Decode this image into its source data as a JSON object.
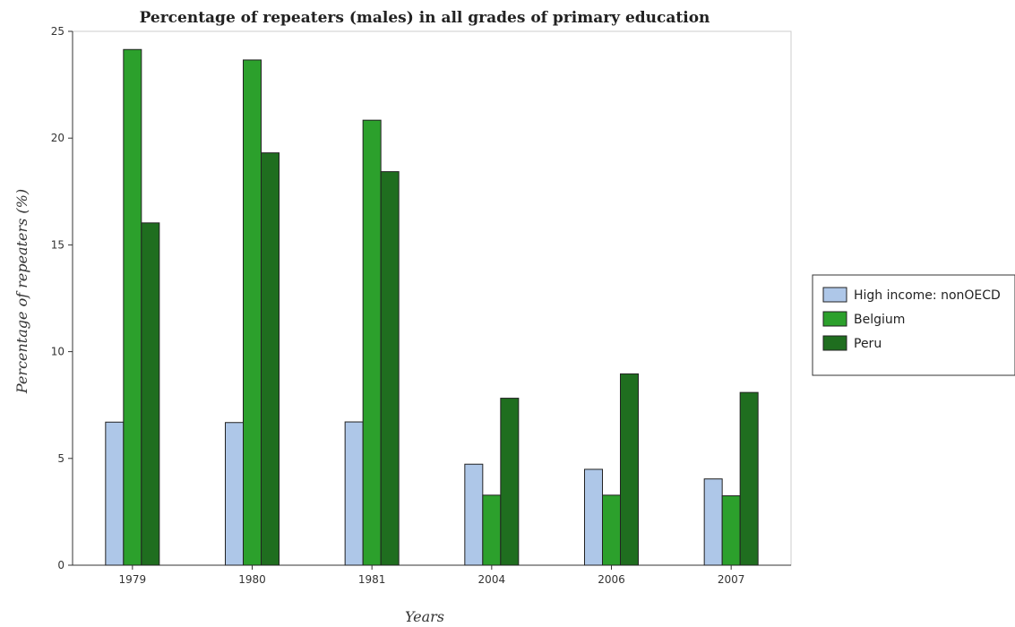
{
  "chart_data": {
    "type": "bar",
    "title": "Percentage of repeaters (males) in all grades of primary education",
    "xlabel": "Years",
    "ylabel": "Percentage of repeaters (%)",
    "categories": [
      "1979",
      "1980",
      "1981",
      "2004",
      "2006",
      "2007"
    ],
    "ylim": [
      0,
      25
    ],
    "yticks": [
      0,
      5,
      10,
      15,
      20,
      25
    ],
    "grid": false,
    "legend_position": "right",
    "series": [
      {
        "name": "High income: nonOECD",
        "color": "#aec7e8",
        "values": [
          6.7,
          6.68,
          6.71,
          4.73,
          4.49,
          4.04
        ]
      },
      {
        "name": "Belgium",
        "color": "#2ca02c",
        "values": [
          24.15,
          23.66,
          20.84,
          3.28,
          3.28,
          3.25
        ]
      },
      {
        "name": "Peru",
        "color": "#1f6e1f",
        "values": [
          16.03,
          19.31,
          18.43,
          7.82,
          8.96,
          8.09
        ]
      }
    ]
  }
}
